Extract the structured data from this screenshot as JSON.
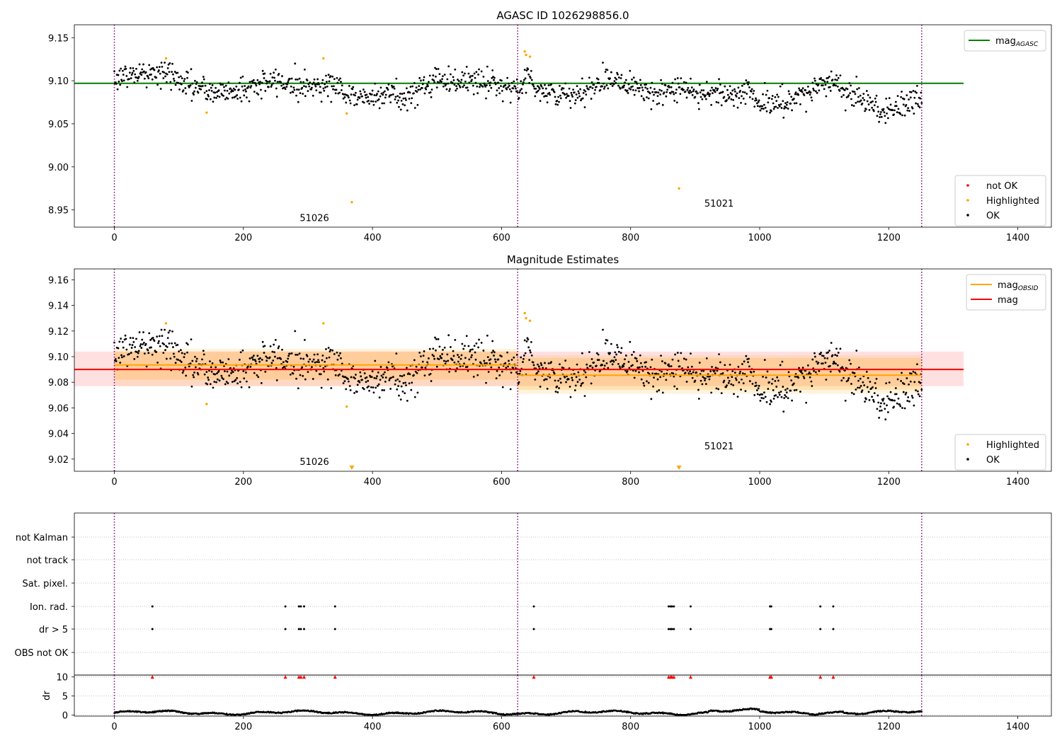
{
  "colors": {
    "ok": "#000000",
    "highlighted": "#ffa500",
    "not_ok": "#ff0000",
    "agasc_line": "#008000",
    "obsid_line": "#ffa500",
    "mag_line": "#ff0000",
    "obs_boundary": "#800080",
    "grid": "#b0b0b0"
  },
  "chart_data": [
    {
      "id": "top",
      "type": "scatter",
      "title": "AGASC ID 1026298856.0",
      "xlim": [
        -62,
        1452
      ],
      "ylim": [
        8.93,
        9.165
      ],
      "xticks": [
        0,
        200,
        400,
        600,
        800,
        1000,
        1200,
        1400
      ],
      "yticks": [
        8.95,
        9.0,
        9.05,
        9.1,
        9.15
      ],
      "ytick_labels": [
        "8.95",
        "9.00",
        "9.05",
        "9.10",
        "9.15"
      ],
      "observation_boundaries": [
        0,
        625,
        1251
      ],
      "obsid_labels": [
        {
          "text": "51026",
          "x": 310,
          "y": 8.937
        },
        {
          "text": "51021",
          "x": 937,
          "y": 8.954
        }
      ],
      "reference_lines": [
        {
          "name": "mag_AGASC",
          "y": 9.097,
          "x_range": [
            -62,
            1316
          ],
          "color": "#008000"
        }
      ],
      "series": [
        {
          "name": "OK",
          "type": "scatter",
          "color": "#000000",
          "generated": true,
          "n_points": 1252
        },
        {
          "name": "Highlighted",
          "type": "scatter",
          "color": "#ffa500",
          "points": [
            [
              80,
              9.126
            ],
            [
              143,
              9.063
            ],
            [
              324,
              9.126
            ],
            [
              360,
              9.062
            ],
            [
              368,
              8.959
            ],
            [
              636,
              9.134
            ],
            [
              638,
              9.13
            ],
            [
              644,
              9.128
            ],
            [
              875,
              8.975
            ]
          ]
        },
        {
          "name": "not OK",
          "type": "scatter",
          "color": "#ff0000",
          "points": []
        }
      ],
      "legend_upper": [
        {
          "label": "mag",
          "sub": "AGASC",
          "kind": "line",
          "color": "#008000"
        }
      ],
      "legend_lower": [
        {
          "label": "not OK",
          "kind": "dot",
          "color": "#ff0000"
        },
        {
          "label": "Highlighted",
          "kind": "dot",
          "color": "#ffa500"
        },
        {
          "label": "OK",
          "kind": "dot",
          "color": "#000000"
        }
      ]
    },
    {
      "id": "middle",
      "type": "scatter",
      "title": "Magnitude Estimates",
      "xlim": [
        -62,
        1452
      ],
      "ylim": [
        9.0105,
        9.1685
      ],
      "xticks": [
        0,
        200,
        400,
        600,
        800,
        1000,
        1200,
        1400
      ],
      "yticks": [
        9.02,
        9.04,
        9.06,
        9.08,
        9.1,
        9.12,
        9.14,
        9.16
      ],
      "ytick_labels": [
        "9.02",
        "9.04",
        "9.06",
        "9.08",
        "9.10",
        "9.12",
        "9.14",
        "9.16"
      ],
      "observation_boundaries": [
        0,
        625,
        1251
      ],
      "obsid_labels": [
        {
          "text": "51026",
          "x": 310,
          "y": 9.0155
        },
        {
          "text": "51021",
          "x": 937,
          "y": 9.0275
        }
      ],
      "mag": {
        "value": 9.09,
        "band": [
          9.077,
          9.104
        ],
        "x_range": [
          -62,
          1316
        ]
      },
      "obsid_mags": [
        {
          "x_range": [
            0,
            625
          ],
          "value": 9.0935,
          "band_inner": [
            9.082,
            9.104
          ],
          "band_outer": [
            9.077,
            9.106
          ]
        },
        {
          "x_range": [
            625,
            1251
          ],
          "value": 9.0855,
          "band_inner": [
            9.074,
            9.099
          ],
          "band_outer": [
            9.071,
            9.101
          ]
        }
      ],
      "series": [
        {
          "name": "OK",
          "type": "scatter",
          "color": "#000000",
          "generated": true,
          "n_points": 1252
        },
        {
          "name": "Highlighted",
          "type": "scatter",
          "color": "#ffa500",
          "points": [
            [
              80,
              9.126
            ],
            [
              143,
              9.063
            ],
            [
              324,
              9.126
            ],
            [
              360,
              9.061
            ],
            [
              636,
              9.134
            ],
            [
              638,
              9.13
            ],
            [
              644,
              9.128
            ]
          ]
        },
        {
          "name": "Highlighted (below range)",
          "type": "marker-down",
          "color": "#ffa500",
          "x": [
            368,
            875
          ]
        }
      ],
      "legend_upper": [
        {
          "label": "mag",
          "sub": "OBSID",
          "kind": "line",
          "color": "#ffa500"
        },
        {
          "label": "mag",
          "sub": "",
          "kind": "line",
          "color": "#ff0000"
        }
      ],
      "legend_lower": [
        {
          "label": "Highlighted",
          "kind": "dot",
          "color": "#ffa500"
        },
        {
          "label": "OK",
          "kind": "dot",
          "color": "#000000"
        }
      ]
    },
    {
      "id": "flags",
      "type": "scatter",
      "xlim": [
        -62,
        1452
      ],
      "categories": [
        "not Kalman",
        "not track",
        "Sat. pixel.",
        "Ion. rad.",
        "dr > 5",
        "OBS not OK"
      ],
      "flag_points": {
        "Ion. rad.": [
          59,
          265,
          286,
          289,
          294,
          342,
          650,
          859,
          862,
          864,
          867,
          893,
          1016,
          1018,
          1094,
          1114
        ],
        "dr > 5": [
          59,
          265,
          286,
          289,
          294,
          342,
          650,
          859,
          862,
          864,
          867,
          893,
          1016,
          1018,
          1094,
          1114
        ]
      },
      "observation_boundaries": [
        0,
        625,
        1251
      ]
    },
    {
      "id": "dr",
      "type": "scatter",
      "ylabel": "dr",
      "xlim": [
        -62,
        1452
      ],
      "ylim": [
        -0.3,
        10.5
      ],
      "xticks": [
        0,
        200,
        400,
        600,
        800,
        1000,
        1200,
        1400
      ],
      "yticks": [
        0,
        5,
        10
      ],
      "series": [
        {
          "name": "dr",
          "type": "scatter",
          "color": "#000000",
          "generated": true,
          "n_points": 1252
        },
        {
          "name": "dr > 5 (clipped)",
          "type": "marker-up",
          "color": "#ff0000",
          "y": 10,
          "x": [
            59,
            265,
            286,
            289,
            294,
            342,
            650,
            859,
            862,
            864,
            867,
            893,
            1016,
            1018,
            1094,
            1114
          ]
        }
      ],
      "observation_boundaries": [
        0,
        625,
        1251
      ]
    }
  ]
}
